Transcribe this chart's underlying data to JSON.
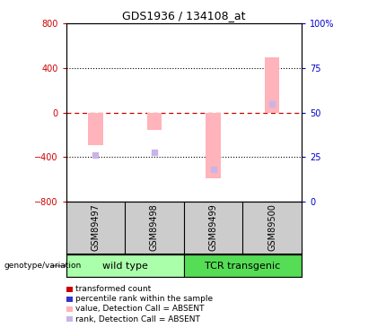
{
  "title": "GDS1936 / 134108_at",
  "samples": [
    "GSM89497",
    "GSM89498",
    "GSM89499",
    "GSM89500"
  ],
  "bar_values": [
    -290,
    -155,
    -590,
    500
  ],
  "rank_values": [
    -380,
    -355,
    -510,
    75
  ],
  "ylim": [
    -800,
    800
  ],
  "yticks_left": [
    -800,
    -400,
    0,
    400,
    800
  ],
  "yticks_right": [
    0,
    25,
    50,
    75,
    100
  ],
  "bar_color_absent": "#ffb3ba",
  "rank_color_absent": "#c8b4e8",
  "zero_line_color": "#cc0000",
  "background_color": "#ffffff",
  "plot_bg": "#ffffff",
  "sample_box_color": "#cccccc",
  "wt_color": "#aaffaa",
  "tcr_color": "#55dd55",
  "legend_items": [
    {
      "label": "transformed count",
      "color": "#cc0000"
    },
    {
      "label": "percentile rank within the sample",
      "color": "#3333cc"
    },
    {
      "label": "value, Detection Call = ABSENT",
      "color": "#ffb3ba"
    },
    {
      "label": "rank, Detection Call = ABSENT",
      "color": "#c8b4e8"
    }
  ],
  "bar_width": 0.25
}
